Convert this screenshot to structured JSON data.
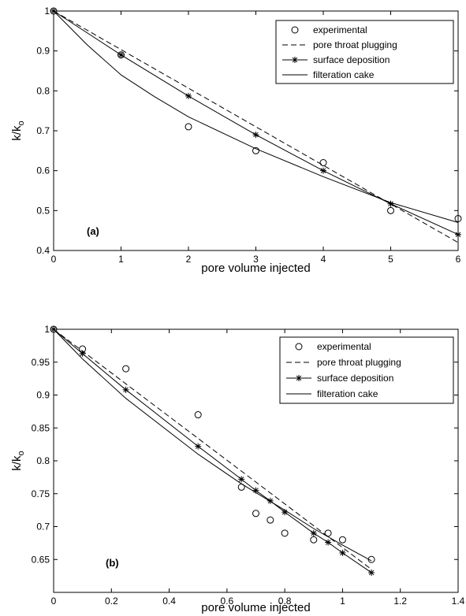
{
  "chart_data": [
    {
      "type": "line",
      "panel_label": "(a)",
      "xlabel": "pore volume injected",
      "ylabel_main": "k/k",
      "ylabel_sub": "o",
      "xlim": [
        0,
        6
      ],
      "ylim": [
        0.4,
        1.0
      ],
      "xticks": [
        "0",
        "1",
        "2",
        "3",
        "4",
        "5",
        "6"
      ],
      "yticks": [
        "0.4",
        "0.5",
        "0.6",
        "0.7",
        "0.8",
        "0.9",
        "1"
      ],
      "grid": false,
      "legend_position": "top-right",
      "series": [
        {
          "name": "experimental",
          "style": "circle-markers",
          "x": [
            0,
            1,
            2,
            3,
            4,
            5,
            6
          ],
          "y": [
            1.0,
            0.89,
            0.71,
            0.65,
            0.62,
            0.5,
            0.48
          ]
        },
        {
          "name": "pore throat plugging",
          "style": "dashed",
          "x": [
            0,
            6
          ],
          "y": [
            1.0,
            0.42
          ]
        },
        {
          "name": "surface deposition",
          "style": "line-star",
          "x": [
            0,
            1,
            2,
            3,
            4,
            5,
            6
          ],
          "y": [
            1.0,
            0.89,
            0.787,
            0.69,
            0.6,
            0.517,
            0.44
          ]
        },
        {
          "name": "filteration cake",
          "style": "solid",
          "x": [
            0,
            0.5,
            1,
            1.5,
            2,
            3,
            4,
            5,
            6
          ],
          "y": [
            1.0,
            0.915,
            0.84,
            0.785,
            0.735,
            0.655,
            0.585,
            0.52,
            0.47
          ]
        }
      ]
    },
    {
      "type": "line",
      "panel_label": "(b)",
      "xlabel": "pore volume injected",
      "ylabel_main": "k/k",
      "ylabel_sub": "o",
      "xlim": [
        0,
        1.4
      ],
      "ylim": [
        0.6,
        1.0
      ],
      "xticks": [
        "0",
        "0.2",
        "0.4",
        "0.6",
        "0.8",
        "1",
        "1.2",
        "1.4"
      ],
      "yticks": [
        "0.65",
        "0.7",
        "0.75",
        "0.8",
        "0.85",
        "0.9",
        "0.95",
        "1"
      ],
      "grid": false,
      "legend_position": "top-right",
      "series": [
        {
          "name": "experimental",
          "style": "circle-markers",
          "x": [
            0,
            0.1,
            0.25,
            0.5,
            0.65,
            0.7,
            0.75,
            0.8,
            0.9,
            0.95,
            1.0,
            1.1
          ],
          "y": [
            1.0,
            0.97,
            0.94,
            0.87,
            0.76,
            0.72,
            0.71,
            0.69,
            0.68,
            0.69,
            0.68,
            0.65
          ]
        },
        {
          "name": "pore throat plugging",
          "style": "dashed",
          "x": [
            0,
            1.1
          ],
          "y": [
            1.0,
            0.635
          ]
        },
        {
          "name": "surface deposition",
          "style": "line-star",
          "x": [
            0,
            0.1,
            0.25,
            0.5,
            0.65,
            0.7,
            0.75,
            0.8,
            0.9,
            0.95,
            1.0,
            1.1
          ],
          "y": [
            1.0,
            0.963,
            0.908,
            0.822,
            0.772,
            0.755,
            0.739,
            0.722,
            0.69,
            0.676,
            0.66,
            0.63
          ]
        },
        {
          "name": "filteration cake",
          "style": "solid",
          "x": [
            0,
            0.1,
            0.25,
            0.5,
            0.65,
            0.8,
            0.9,
            1.0,
            1.1
          ],
          "y": [
            1.0,
            0.955,
            0.895,
            0.81,
            0.765,
            0.725,
            0.697,
            0.672,
            0.648
          ]
        }
      ]
    }
  ]
}
